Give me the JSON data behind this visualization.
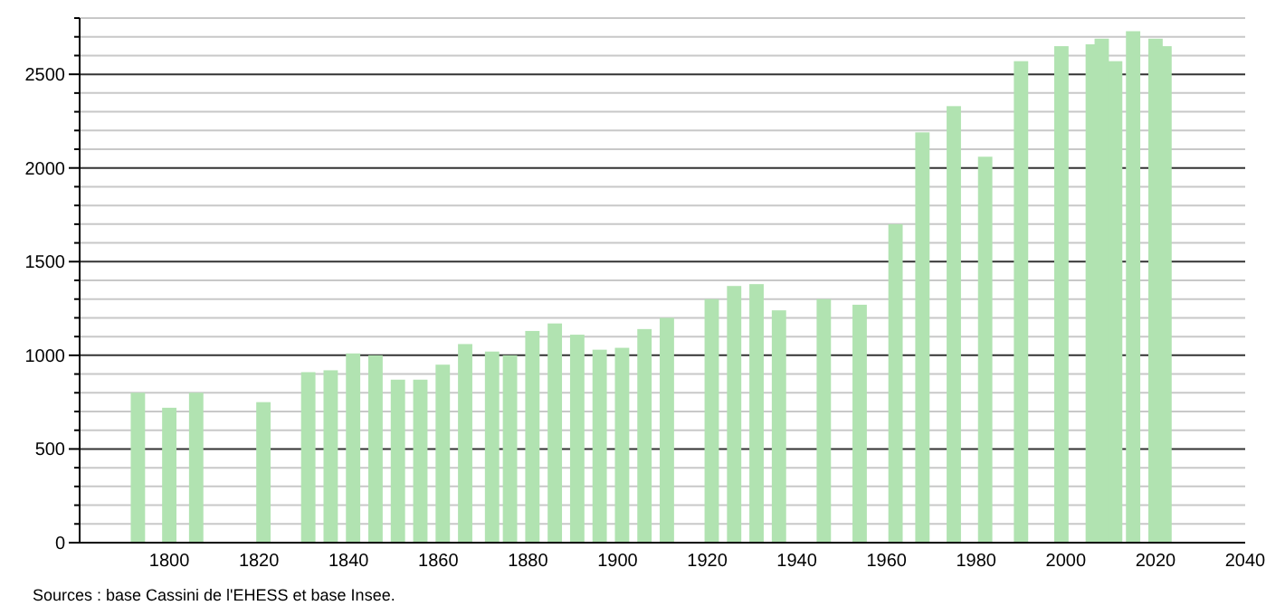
{
  "chart_data": {
    "type": "bar",
    "x": [
      1793,
      1800,
      1806,
      1821,
      1831,
      1836,
      1841,
      1846,
      1851,
      1856,
      1861,
      1866,
      1872,
      1876,
      1881,
      1886,
      1891,
      1896,
      1901,
      1906,
      1911,
      1921,
      1926,
      1931,
      1936,
      1946,
      1954,
      1962,
      1968,
      1975,
      1982,
      1990,
      1999,
      2006,
      2008,
      2011,
      2015,
      2020,
      2022
    ],
    "values": [
      800,
      720,
      800,
      750,
      910,
      920,
      1010,
      1000,
      870,
      870,
      950,
      1060,
      1020,
      1000,
      1130,
      1170,
      1110,
      1030,
      1040,
      1140,
      1200,
      1300,
      1370,
      1380,
      1240,
      1300,
      1270,
      1700,
      2190,
      2330,
      2060,
      2570,
      2650,
      2660,
      2690,
      2570,
      2730,
      2690,
      2650
    ],
    "color": "#b1e3b1",
    "xlim": [
      1780,
      2040
    ],
    "xticks": [
      1800,
      1820,
      1840,
      1860,
      1880,
      1900,
      1920,
      1940,
      1960,
      1980,
      2000,
      2020,
      2040
    ],
    "ylim": [
      0,
      2800
    ],
    "yticks": [
      0,
      {
        "value": 100,
        "label": null
      },
      {
        "value": 200,
        "label": null
      },
      {
        "value": 300,
        "label": null
      },
      {
        "value": 400,
        "label": null
      },
      500,
      {
        "value": 600,
        "label": null
      },
      {
        "value": 700,
        "label": null
      },
      {
        "value": 800,
        "label": null
      },
      {
        "value": 900,
        "label": null
      },
      1000,
      {
        "value": 1100,
        "label": null
      },
      {
        "value": 1200,
        "label": null
      },
      {
        "value": 1300,
        "label": null
      },
      {
        "value": 1400,
        "label": null
      },
      1500,
      {
        "value": 1600,
        "label": null
      },
      {
        "value": 1700,
        "label": null
      },
      {
        "value": 1800,
        "label": null
      },
      {
        "value": 1900,
        "label": null
      },
      2000,
      {
        "value": 2100,
        "label": null
      },
      {
        "value": 2200,
        "label": null
      },
      {
        "value": 2300,
        "label": null
      },
      {
        "value": 2400,
        "label": null
      },
      2500,
      {
        "value": 2600,
        "label": null
      },
      {
        "value": 2700,
        "label": null
      },
      {
        "value": 2800,
        "label": null
      }
    ],
    "grid": "y",
    "annotations": [
      "Sources : base Cassini de l'EHESS et base Insee."
    ]
  }
}
